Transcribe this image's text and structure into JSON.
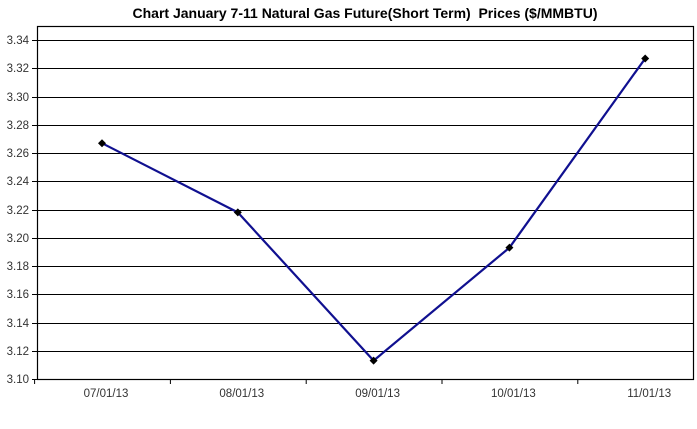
{
  "chart_data": {
    "type": "line",
    "title": "Chart January 7-11 Natural Gas Future(Short Term)  Prices ($/MMBTU)",
    "categories": [
      "07/01/13",
      "08/01/13",
      "09/01/13",
      "10/01/13",
      "11/01/13"
    ],
    "series": [
      {
        "name": "Natural Gas Future (Short Term) Price",
        "values": [
          3.267,
          3.218,
          3.113,
          3.193,
          3.327
        ]
      }
    ],
    "xlabel": "",
    "ylabel": "",
    "ylim": [
      3.1,
      3.35
    ],
    "ytick_step": 0.02,
    "yticks": [
      3.1,
      3.12,
      3.14,
      3.16,
      3.18,
      3.2,
      3.22,
      3.24,
      3.26,
      3.28,
      3.3,
      3.32,
      3.34
    ],
    "ytick_labels": [
      "3.10",
      "3.12",
      "3.14",
      "3.16",
      "3.18",
      "3.20",
      "3.22",
      "3.24",
      "3.26",
      "3.28",
      "3.30",
      "3.32",
      "3.34"
    ],
    "grid": true,
    "legend_position": "none",
    "marker_shape": "diamond",
    "colors": {
      "line": "#101090",
      "marker": "#000000",
      "grid": "#000000",
      "axis": "#000000",
      "tick_text": "#333333",
      "title_text": "#000000",
      "background": "#ffffff"
    }
  }
}
